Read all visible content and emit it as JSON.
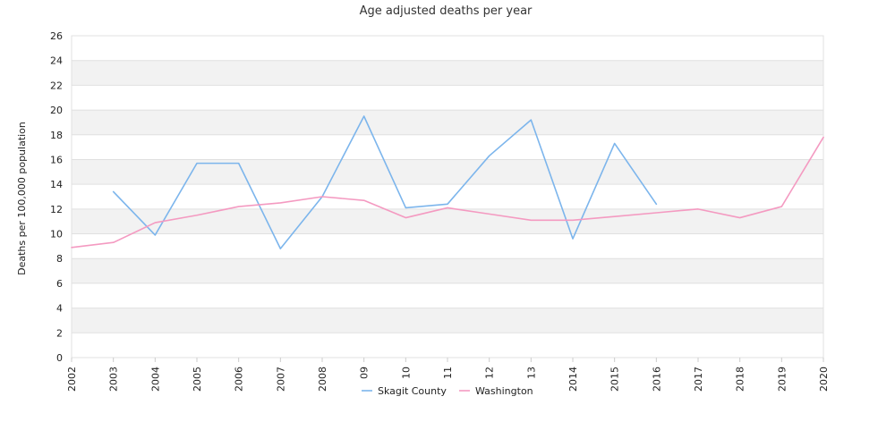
{
  "chart_data": {
    "type": "line",
    "title": "Age adjusted deaths per year",
    "ylabel": "Deaths per 100,000 population",
    "xlabel": "",
    "x": [
      "2002",
      "2003",
      "2004",
      "2005",
      "2006",
      "2007",
      "2008",
      "09",
      "10",
      "11",
      "12",
      "13",
      "2014",
      "2015",
      "2016",
      "2017",
      "2018",
      "2019",
      "2020"
    ],
    "ylim": [
      0,
      26
    ],
    "yticks": [
      0,
      2,
      4,
      6,
      8,
      10,
      12,
      14,
      16,
      18,
      20,
      22,
      24,
      26
    ],
    "grid": true,
    "legend_position": "bottom",
    "series": [
      {
        "name": "Skagit County",
        "color": "#7cb5ec",
        "values": [
          null,
          13.4,
          9.9,
          15.7,
          15.7,
          8.8,
          13.0,
          19.5,
          12.1,
          12.4,
          16.3,
          19.2,
          9.6,
          17.3,
          12.4,
          null,
          null,
          null,
          null
        ]
      },
      {
        "name": "Washington",
        "color": "#f49ac1",
        "values": [
          8.9,
          9.3,
          10.9,
          11.5,
          12.2,
          12.5,
          13.0,
          12.7,
          11.3,
          12.1,
          11.6,
          11.1,
          11.1,
          11.4,
          11.7,
          12.0,
          11.3,
          12.2,
          17.8
        ]
      }
    ]
  }
}
